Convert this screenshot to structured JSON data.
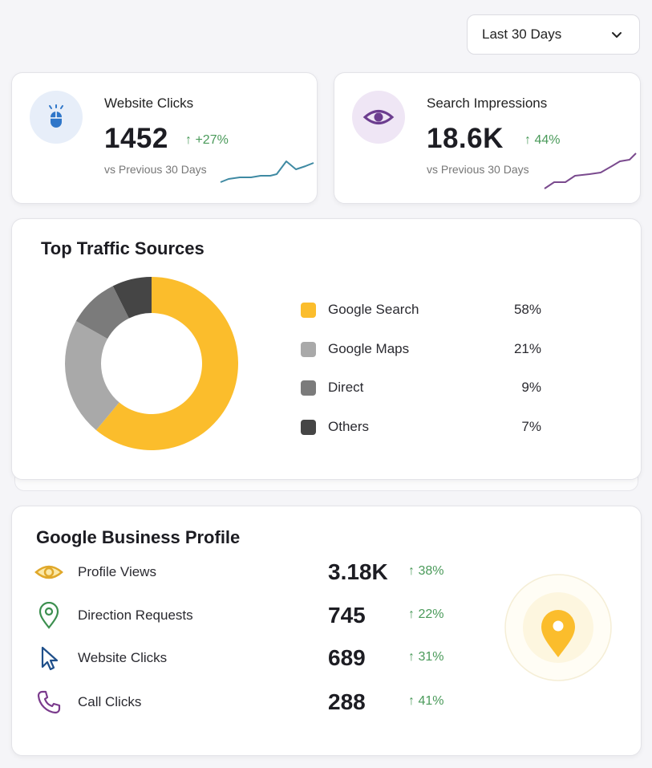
{
  "date_range": {
    "selected": "Last 30 Days"
  },
  "stats": [
    {
      "title": "Website Clicks",
      "value": "1452",
      "change": "↑ +27%",
      "sub": "vs Previous 30 Days",
      "icon": "mouse-icon",
      "accent": "#2f76c9"
    },
    {
      "title": "Search Impressions",
      "value": "18.6K",
      "change": "↑ 44%",
      "sub": "vs Previous 30 Days",
      "icon": "eye-icon",
      "accent": "#6c3d8f"
    }
  ],
  "traffic": {
    "title": "Top Traffic Sources",
    "chart_data": {
      "type": "pie",
      "title": "Top Traffic Sources",
      "categories": [
        "Google Search",
        "Google Maps",
        "Direct",
        "Others"
      ],
      "values": [
        58,
        21,
        9,
        7
      ],
      "value_labels": [
        "58%",
        "21%",
        "9%",
        "7%"
      ],
      "colors": [
        "#fbbd2c",
        "#a9a9a9",
        "#7b7b7b",
        "#454545"
      ],
      "legend": "right"
    }
  },
  "gbp": {
    "title": "Google Business Profile",
    "rows": [
      {
        "label": "Profile Views",
        "value": "3.18K",
        "change": "↑ 38%",
        "icon": "eye-icon",
        "color": "#e0a82a"
      },
      {
        "label": "Direction Requests",
        "value": "745",
        "change": "↑ 22%",
        "icon": "location-pin-icon",
        "color": "#3c8f4f"
      },
      {
        "label": "Website Clicks",
        "value": "689",
        "change": "↑ 31%",
        "icon": "cursor-icon",
        "color": "#1f4f8a"
      },
      {
        "label": "Call Clicks",
        "value": "288",
        "change": "↑ 41%",
        "icon": "phone-icon",
        "color": "#7a3a8c"
      }
    ],
    "map_pin_color": "#fbbd2c"
  }
}
